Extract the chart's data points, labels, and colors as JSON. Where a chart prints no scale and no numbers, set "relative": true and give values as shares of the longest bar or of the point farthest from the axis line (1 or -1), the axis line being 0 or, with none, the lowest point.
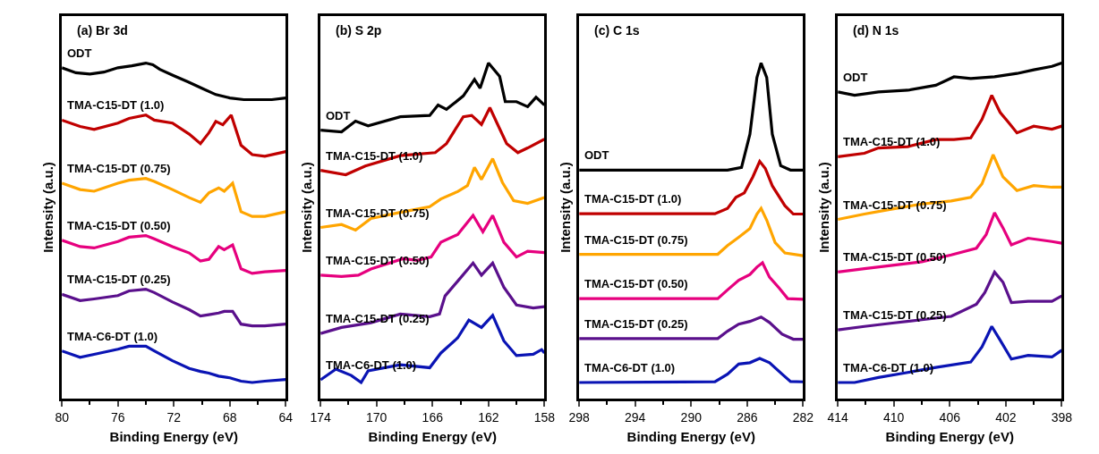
{
  "chart_data": [
    {
      "type": "line",
      "title": "(a) Br 3d",
      "xlabel": "Binding Energy (eV)",
      "ylabel": "Intensity (a.u.)",
      "relative": true,
      "xlim": [
        80,
        64
      ],
      "xticks": [
        80,
        {
          "value": 78,
          "label": null
        },
        76,
        {
          "value": 74,
          "label": null
        },
        72,
        {
          "value": 70,
          "label": null
        },
        68,
        {
          "value": 66,
          "label": null
        },
        64
      ],
      "legend": false,
      "marker": "none",
      "line_style": "solid",
      "series": [
        {
          "name": "ODT",
          "color": "#000000",
          "x": [
            80,
            79,
            78,
            77,
            76,
            75,
            74,
            73.5,
            73,
            72,
            71,
            70,
            69,
            68,
            67,
            66,
            65,
            64
          ],
          "values": [
            0.986,
            0.971,
            0.967,
            0.973,
            0.986,
            0.992,
            1.0,
            0.995,
            0.981,
            0.962,
            0.944,
            0.925,
            0.906,
            0.896,
            0.891,
            0.891,
            0.891,
            0.896
          ]
        },
        {
          "name": "TMA-C15-DT (1.0)",
          "color": "#c00000",
          "x": [
            80,
            78.7,
            77.7,
            76,
            75.2,
            74,
            73.4,
            72.1,
            70.9,
            70.1,
            69.5,
            69,
            68.5,
            67.9,
            67.2,
            66.4,
            65.5,
            64
          ],
          "values": [
            0.83,
            0.811,
            0.802,
            0.821,
            0.835,
            0.845,
            0.83,
            0.821,
            0.788,
            0.76,
            0.792,
            0.826,
            0.816,
            0.845,
            0.755,
            0.727,
            0.722,
            0.736
          ]
        },
        {
          "name": "TMA-C15-DT (0.75)",
          "color": "#ffa500",
          "x": [
            80,
            78.7,
            77.7,
            76,
            75.2,
            74,
            73.4,
            72.1,
            70.9,
            70.1,
            69.5,
            68.8,
            68.4,
            67.8,
            67.2,
            66.4,
            65.5,
            64
          ],
          "values": [
            0.642,
            0.623,
            0.618,
            0.642,
            0.651,
            0.656,
            0.647,
            0.623,
            0.599,
            0.585,
            0.613,
            0.628,
            0.618,
            0.642,
            0.557,
            0.543,
            0.543,
            0.557
          ]
        },
        {
          "name": "TMA-C15-DT (0.50)",
          "color": "#e6007e",
          "x": [
            80,
            78.7,
            77.7,
            76,
            75.2,
            74,
            73.4,
            72.1,
            70.9,
            70.1,
            69.5,
            68.8,
            68.4,
            67.8,
            67.2,
            66.4,
            65.5,
            64
          ],
          "values": [
            0.472,
            0.453,
            0.449,
            0.468,
            0.481,
            0.486,
            0.476,
            0.453,
            0.434,
            0.41,
            0.415,
            0.453,
            0.444,
            0.458,
            0.387,
            0.373,
            0.378,
            0.382
          ]
        },
        {
          "name": "TMA-C15-DT (0.25)",
          "color": "#5a108c",
          "x": [
            80,
            78.7,
            77.7,
            76,
            75.2,
            74,
            73.4,
            72.1,
            70.9,
            70.1,
            69.5,
            68.8,
            68.4,
            67.8,
            67.2,
            66.4,
            65.5,
            64
          ],
          "values": [
            0.311,
            0.292,
            0.297,
            0.307,
            0.321,
            0.326,
            0.316,
            0.288,
            0.265,
            0.246,
            0.25,
            0.255,
            0.26,
            0.26,
            0.222,
            0.217,
            0.217,
            0.222
          ]
        },
        {
          "name": "TMA-C6-DT (1.0)",
          "color": "#0a14b4",
          "x": [
            80,
            78.7,
            77.7,
            76,
            75.2,
            74,
            73.4,
            72.1,
            70.9,
            70.1,
            69.5,
            68.8,
            68,
            67.2,
            66.4,
            65.5,
            64
          ],
          "values": [
            0.142,
            0.123,
            0.132,
            0.147,
            0.156,
            0.156,
            0.142,
            0.113,
            0.09,
            0.081,
            0.076,
            0.067,
            0.062,
            0.052,
            0.048,
            0.052,
            0.057
          ]
        }
      ]
    },
    {
      "type": "line",
      "title": "(b) S 2p",
      "xlabel": "Binding Energy (eV)",
      "ylabel": "Intensity (a.u.)",
      "relative": true,
      "xlim": [
        174,
        158
      ],
      "xticks": [
        174,
        {
          "value": 172,
          "label": null
        },
        170,
        {
          "value": 168,
          "label": null
        },
        166,
        {
          "value": 164,
          "label": null
        },
        162,
        {
          "value": 160,
          "label": null
        },
        158
      ],
      "legend": false,
      "marker": "none",
      "line_style": "solid",
      "series": [
        {
          "name": "ODT",
          "color": "#000000",
          "x": [
            174,
            172.5,
            171.5,
            170.6,
            168.3,
            166.2,
            165.6,
            165,
            163.8,
            163,
            162.6,
            162,
            161.2,
            160.8,
            160,
            159.2,
            158.6,
            158
          ],
          "values": [
            0.8,
            0.795,
            0.827,
            0.813,
            0.84,
            0.844,
            0.875,
            0.862,
            0.902,
            0.951,
            0.925,
            1.0,
            0.96,
            0.885,
            0.885,
            0.87,
            0.898,
            0.875
          ]
        },
        {
          "name": "TMA-C15-DT (1.0)",
          "color": "#c00000",
          "x": [
            174,
            172.2,
            170.8,
            168.3,
            165.8,
            165,
            163.8,
            163.2,
            162.5,
            161.9,
            161.3,
            160.7,
            159.9,
            159.2,
            158
          ],
          "values": [
            0.68,
            0.667,
            0.693,
            0.724,
            0.733,
            0.76,
            0.84,
            0.844,
            0.817,
            0.867,
            0.813,
            0.76,
            0.733,
            0.747,
            0.773
          ]
        },
        {
          "name": "TMA-C15-DT (0.75)",
          "color": "#ffa500",
          "x": [
            174,
            172.5,
            171.5,
            170.4,
            168.3,
            166.2,
            165.4,
            164.2,
            163.5,
            163,
            162.5,
            161.7,
            161,
            160.2,
            159.2,
            158
          ],
          "values": [
            0.51,
            0.519,
            0.502,
            0.537,
            0.555,
            0.572,
            0.595,
            0.617,
            0.635,
            0.689,
            0.653,
            0.715,
            0.644,
            0.59,
            0.582,
            0.599
          ]
        },
        {
          "name": "TMA-C15-DT (0.50)",
          "color": "#e6007e",
          "x": [
            174,
            172.5,
            171.3,
            170.4,
            168.1,
            167.1,
            166.1,
            165.4,
            164.2,
            163.1,
            162.4,
            161.7,
            160.9,
            160,
            159.2,
            158
          ],
          "values": [
            0.368,
            0.364,
            0.368,
            0.386,
            0.417,
            0.412,
            0.422,
            0.466,
            0.489,
            0.546,
            0.497,
            0.546,
            0.466,
            0.422,
            0.439,
            0.435
          ]
        },
        {
          "name": "TMA-C15-DT (0.25)",
          "color": "#5a108c",
          "x": [
            174,
            172.5,
            170.4,
            168.3,
            166.2,
            165.5,
            165.1,
            164.2,
            163.1,
            162.5,
            161.7,
            160.9,
            160,
            158.8,
            158
          ],
          "values": [
            0.194,
            0.212,
            0.226,
            0.252,
            0.244,
            0.252,
            0.306,
            0.35,
            0.404,
            0.368,
            0.404,
            0.332,
            0.279,
            0.27,
            0.274
          ]
        },
        {
          "name": "TMA-C6-DT (1.0)",
          "color": "#0a14b4",
          "x": [
            174,
            172.9,
            171.8,
            171.1,
            170.6,
            168.3,
            166.2,
            165.4,
            164.2,
            163.4,
            162.5,
            161.7,
            160.9,
            160,
            158.8,
            158.2,
            158
          ],
          "values": [
            0.056,
            0.088,
            0.069,
            0.048,
            0.083,
            0.101,
            0.092,
            0.136,
            0.181,
            0.234,
            0.212,
            0.248,
            0.172,
            0.128,
            0.132,
            0.146,
            0.136
          ]
        }
      ]
    },
    {
      "type": "line",
      "title": "(c) C 1s",
      "xlabel": "Binding Energy (eV)",
      "ylabel": "Intensity (a.u.)",
      "relative": true,
      "xlim": [
        298,
        282
      ],
      "xticks": [
        298,
        {
          "value": 296,
          "label": null
        },
        294,
        {
          "value": 292,
          "label": null
        },
        290,
        {
          "value": 288,
          "label": null
        },
        286,
        {
          "value": 284,
          "label": null
        },
        282
      ],
      "legend": false,
      "marker": "none",
      "line_style": "solid",
      "series": [
        {
          "name": "ODT",
          "color": "#000000",
          "x": [
            298,
            294,
            290,
            287.4,
            286.4,
            285.8,
            285.3,
            285,
            284.6,
            284.2,
            283.6,
            282.9,
            282
          ],
          "values": [
            0.681,
            0.681,
            0.681,
            0.681,
            0.689,
            0.788,
            0.957,
            1.0,
            0.957,
            0.788,
            0.694,
            0.681,
            0.681
          ]
        },
        {
          "name": "TMA-C15-DT (1.0)",
          "color": "#c00000",
          "x": [
            298,
            288.3,
            287.4,
            286.8,
            286.2,
            285.6,
            285.1,
            284.7,
            284.2,
            283.3,
            282.7,
            282
          ],
          "values": [
            0.551,
            0.551,
            0.567,
            0.6,
            0.613,
            0.66,
            0.707,
            0.686,
            0.634,
            0.575,
            0.55,
            0.55
          ]
        },
        {
          "name": "TMA-C15-DT (0.75)",
          "color": "#ffa500",
          "x": [
            298,
            288.1,
            287.4,
            286.6,
            285.8,
            285.3,
            285,
            284.6,
            284,
            283.3,
            282
          ],
          "values": [
            0.43,
            0.43,
            0.456,
            0.481,
            0.507,
            0.55,
            0.567,
            0.532,
            0.465,
            0.434,
            0.426
          ]
        },
        {
          "name": "TMA-C15-DT (0.50)",
          "color": "#e6007e",
          "x": [
            298,
            288.1,
            287.4,
            286.6,
            285.8,
            285.3,
            284.9,
            284.4,
            283.7,
            283.1,
            282
          ],
          "values": [
            0.298,
            0.298,
            0.324,
            0.353,
            0.37,
            0.392,
            0.405,
            0.362,
            0.329,
            0.298,
            0.296
          ]
        },
        {
          "name": "TMA-C15-DT (0.25)",
          "color": "#5a108c",
          "x": [
            298,
            288.1,
            287.4,
            286.6,
            285.8,
            285,
            284.4,
            283.5,
            282.7,
            282
          ],
          "values": [
            0.179,
            0.179,
            0.201,
            0.222,
            0.23,
            0.243,
            0.227,
            0.192,
            0.177,
            0.177
          ]
        },
        {
          "name": "TMA-C6-DT (1.0)",
          "color": "#0a14b4",
          "x": [
            298,
            288.3,
            287.4,
            286.6,
            285.8,
            285.1,
            284.4,
            283.5,
            282.9,
            282
          ],
          "values": [
            0.048,
            0.05,
            0.073,
            0.103,
            0.107,
            0.12,
            0.107,
            0.073,
            0.051,
            0.05
          ]
        }
      ]
    },
    {
      "type": "line",
      "title": "(d) N 1s",
      "xlabel": "Binding Energy (eV)",
      "ylabel": "Intensity (a.u.)",
      "relative": true,
      "xlim": [
        414,
        398
      ],
      "xticks": [
        414,
        {
          "value": 412,
          "label": null
        },
        410,
        {
          "value": 408,
          "label": null
        },
        406,
        {
          "value": 404,
          "label": null
        },
        402,
        {
          "value": 400,
          "label": null
        },
        398
      ],
      "legend": false,
      "marker": "none",
      "line_style": "solid",
      "series": [
        {
          "name": "ODT",
          "color": "#000000",
          "x": [
            414,
            412.8,
            411.1,
            409,
            407,
            405.7,
            404.5,
            402.8,
            401.2,
            400,
            398.7,
            398
          ],
          "values": [
            0.914,
            0.904,
            0.914,
            0.919,
            0.934,
            0.959,
            0.954,
            0.959,
            0.969,
            0.98,
            0.99,
            1.0
          ]
        },
        {
          "name": "TMA-C15-DT (1.0)",
          "color": "#c00000",
          "x": [
            414,
            412.1,
            411.1,
            409,
            407,
            405.7,
            404.5,
            403.7,
            403,
            402.4,
            401.8,
            401.2,
            400,
            398.7,
            398
          ],
          "values": [
            0.721,
            0.731,
            0.747,
            0.751,
            0.772,
            0.772,
            0.777,
            0.832,
            0.904,
            0.853,
            0.823,
            0.792,
            0.812,
            0.803,
            0.812
          ]
        },
        {
          "name": "TMA-C15-DT (0.75)",
          "color": "#ffa500",
          "x": [
            414,
            412.1,
            410.1,
            408,
            405.9,
            404.5,
            403.7,
            402.9,
            402.2,
            401.2,
            400,
            398.7,
            398
          ],
          "values": [
            0.534,
            0.55,
            0.565,
            0.58,
            0.589,
            0.6,
            0.64,
            0.727,
            0.661,
            0.62,
            0.635,
            0.63,
            0.63
          ]
        },
        {
          "name": "TMA-C15-DT (0.50)",
          "color": "#e6007e",
          "x": [
            414,
            412.1,
            410.1,
            408,
            405.9,
            404.1,
            403.4,
            402.8,
            402.2,
            401.6,
            400.4,
            398.7,
            398
          ],
          "values": [
            0.377,
            0.387,
            0.397,
            0.408,
            0.428,
            0.448,
            0.489,
            0.554,
            0.509,
            0.458,
            0.478,
            0.468,
            0.463
          ]
        },
        {
          "name": "TMA-C15-DT (0.25)",
          "color": "#5a108c",
          "x": [
            414,
            412.1,
            410.1,
            408,
            405.9,
            404.1,
            403.5,
            402.8,
            402.2,
            401.6,
            400.4,
            398.7,
            398
          ],
          "values": [
            0.205,
            0.215,
            0.225,
            0.235,
            0.245,
            0.281,
            0.316,
            0.377,
            0.347,
            0.286,
            0.29,
            0.29,
            0.306
          ]
        },
        {
          "name": "TMA-C6-DT (1.0)",
          "color": "#0a14b4",
          "x": [
            414,
            412.8,
            411.1,
            409,
            407,
            404.5,
            403.7,
            403,
            402.4,
            401.6,
            400.4,
            398.7,
            398
          ],
          "values": [
            0.048,
            0.048,
            0.063,
            0.078,
            0.093,
            0.109,
            0.154,
            0.215,
            0.174,
            0.118,
            0.129,
            0.124,
            0.144
          ]
        }
      ]
    }
  ]
}
